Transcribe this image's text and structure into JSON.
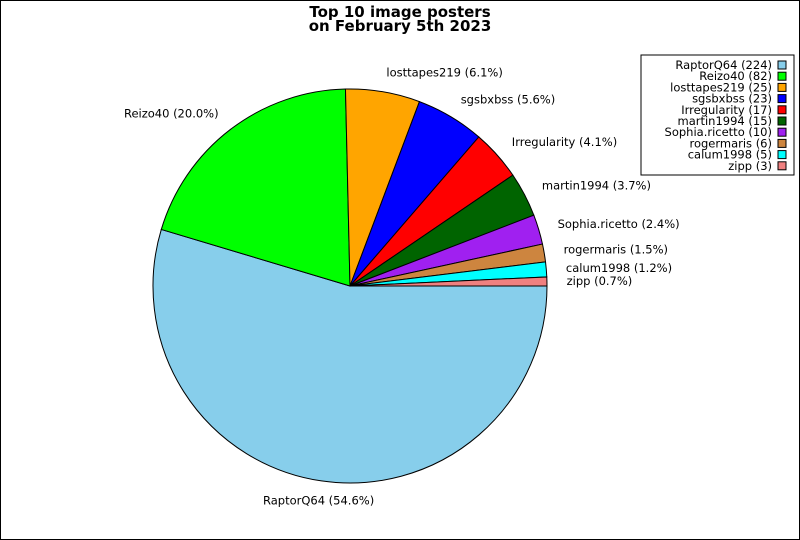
{
  "chart_data": {
    "type": "pie",
    "title_lines": [
      "Top 10 image posters",
      "on February 5th 2023"
    ],
    "slices": [
      {
        "name": "RaptorQ64",
        "count": 224,
        "percent_label": "RaptorQ64 (54.6%)",
        "legend_label": "RaptorQ64 (224)",
        "color": "#87CEEB"
      },
      {
        "name": "Reizo40",
        "count": 82,
        "percent_label": "Reizo40 (20.0%)",
        "legend_label": "Reizo40 (82)",
        "color": "#00FF00"
      },
      {
        "name": "losttapes219",
        "count": 25,
        "percent_label": "losttapes219 (6.1%)",
        "legend_label": "losttapes219 (25)",
        "color": "#FFA500"
      },
      {
        "name": "sgsbxbss",
        "count": 23,
        "percent_label": "sgsbxbss (5.6%)",
        "legend_label": "sgsbxbss (23)",
        "color": "#0000FF"
      },
      {
        "name": "Irregularity",
        "count": 17,
        "percent_label": "Irregularity (4.1%)",
        "legend_label": "Irregularity (17)",
        "color": "#FF0000"
      },
      {
        "name": "martin1994",
        "count": 15,
        "percent_label": "martin1994 (3.7%)",
        "legend_label": "martin1994 (15)",
        "color": "#006400"
      },
      {
        "name": "Sophia.ricetto",
        "count": 10,
        "percent_label": "Sophia.ricetto (2.4%)",
        "legend_label": "Sophia.ricetto (10)",
        "color": "#A020F0"
      },
      {
        "name": "rogermaris",
        "count": 6,
        "percent_label": "rogermaris (1.5%)",
        "legend_label": "rogermaris (6)",
        "color": "#CD853F"
      },
      {
        "name": "calum1998",
        "count": 5,
        "percent_label": "calum1998 (1.2%)",
        "legend_label": "calum1998 (5)",
        "color": "#00FFFF"
      },
      {
        "name": "zipp",
        "count": 3,
        "percent_label": "zipp (0.7%)",
        "legend_label": "zipp (3)",
        "color": "#F08080"
      }
    ],
    "start_angle": "0 degrees (east), clockwise",
    "legend_position": "top-right"
  }
}
